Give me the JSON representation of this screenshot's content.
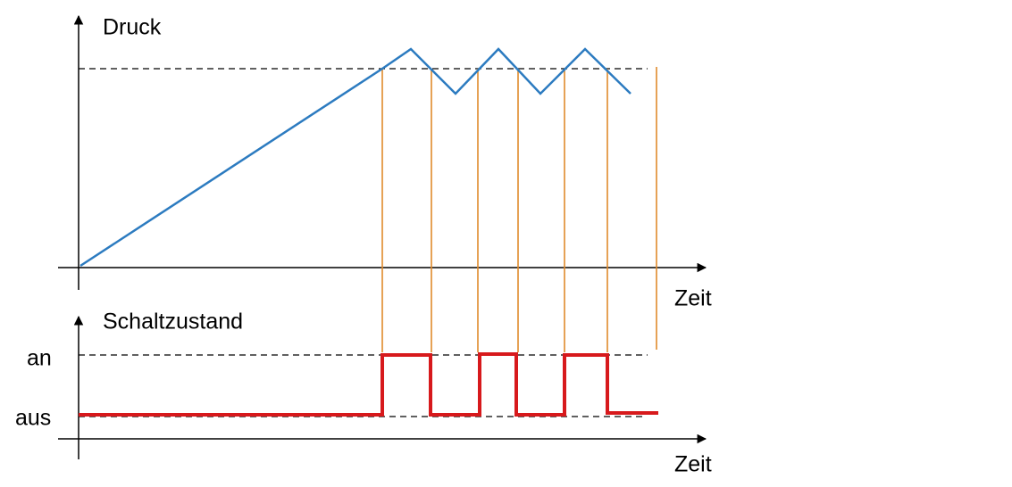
{
  "top_chart": {
    "y_label": "Druck",
    "x_label": "Zeit"
  },
  "bottom_chart": {
    "y_label": "Schaltzustand",
    "x_label": "Zeit",
    "states": [
      "an",
      "aus"
    ]
  }
}
